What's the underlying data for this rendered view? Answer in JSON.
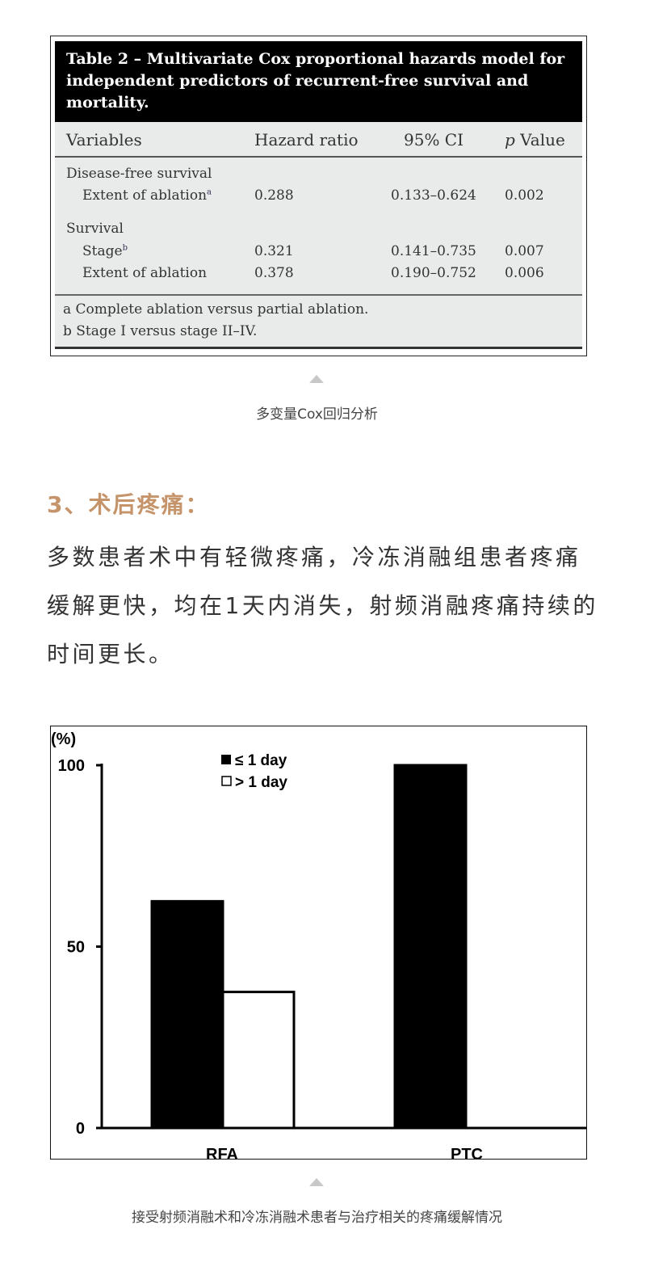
{
  "table": {
    "title": "Table 2 – Multivariate Cox proportional hazards model for independent predictors of recurrent-free survival and mortality.",
    "headers": {
      "variables": "Variables",
      "hazard_ratio": "Hazard ratio",
      "ci": "95% CI",
      "p_italic": "p",
      "p_rest": " Value"
    },
    "groups": [
      {
        "label": "Disease-free survival",
        "rows": [
          {
            "variable": "Extent of ablation",
            "sup": "a",
            "hr": "0.288",
            "ci": "0.133–0.624",
            "p": "0.002"
          }
        ]
      },
      {
        "label": "Survival",
        "rows": [
          {
            "variable": "Stage",
            "sup": "b",
            "hr": "0.321",
            "ci": "0.141–0.735",
            "p": "0.007"
          },
          {
            "variable": "Extent of ablation",
            "sup": "",
            "hr": "0.378",
            "ci": "0.190–0.752",
            "p": "0.006"
          }
        ]
      }
    ],
    "footnotes": [
      "a  Complete ablation versus partial ablation.",
      "b  Stage I versus stage II–IV."
    ]
  },
  "caption1": "多变量Cox回归分析",
  "section": {
    "heading": "3、术后疼痛：",
    "paragraph": "多数患者术中有轻微疼痛，冷冻消融组患者疼痛缓解更快，均在1天内消失，射频消融疼痛持续的时间更长。"
  },
  "caption2": "接受射频消融术和冷冻消融术患者与治疗相关的疼痛缓解情况",
  "colors": {
    "heading": "#c6946a",
    "table_header_bg": "#000000",
    "table_bg": "#e9ebea"
  },
  "chart_data": {
    "type": "bar",
    "categories": [
      "RFA",
      "PTC"
    ],
    "series": [
      {
        "name": "≤ 1 day",
        "values": [
          62.5,
          100
        ],
        "color": "#000000"
      },
      {
        "name": "> 1 day",
        "values": [
          37.5,
          0
        ],
        "color": "#ffffff"
      }
    ],
    "ylabel": "(%)",
    "yticks": [
      "0",
      "50",
      "100"
    ],
    "ylim": [
      0,
      100
    ],
    "legend": "top-left",
    "grid": false
  }
}
